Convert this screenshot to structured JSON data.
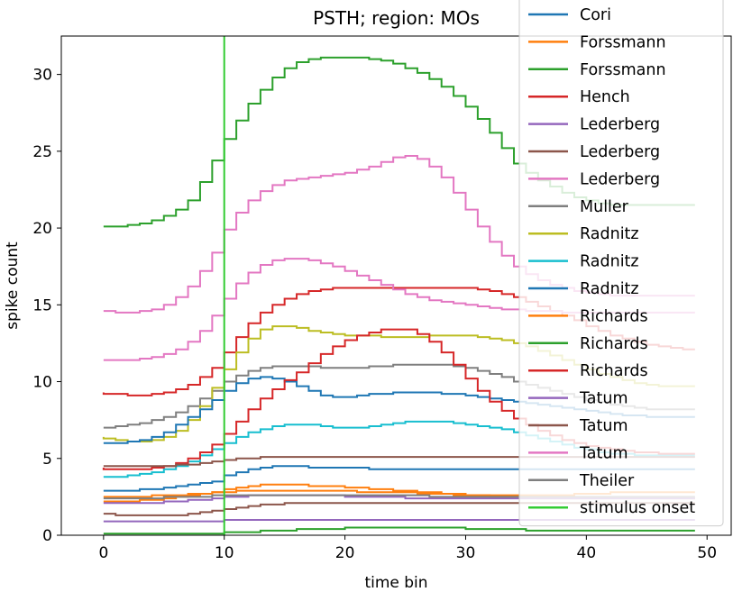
{
  "chart_data": {
    "type": "line",
    "drawstyle": "steps",
    "title": "PSTH; region: MOs",
    "xlabel": "time bin",
    "ylabel": "spike count",
    "xlim": [
      -3.5,
      52
    ],
    "ylim": [
      0,
      32.5
    ],
    "xticks": [
      0,
      10,
      20,
      30,
      40,
      50
    ],
    "yticks": [
      0,
      5,
      10,
      15,
      20,
      25,
      30
    ],
    "grid": false,
    "legend_position": "upper-right",
    "x": [
      0,
      1,
      2,
      3,
      4,
      5,
      6,
      7,
      8,
      9,
      10,
      11,
      12,
      13,
      14,
      15,
      16,
      17,
      18,
      19,
      20,
      21,
      22,
      23,
      24,
      25,
      26,
      27,
      28,
      29,
      30,
      31,
      32,
      33,
      34,
      35,
      36,
      37,
      38,
      39,
      40,
      41,
      42,
      43,
      44,
      45,
      46,
      47,
      48,
      49
    ],
    "series": [
      {
        "name": "Cori",
        "color": "#1f77b4",
        "values": [
          2.9,
          2.9,
          2.9,
          2.9,
          3.0,
          3.0,
          3.1,
          3.2,
          3.3,
          3.4,
          3.5,
          3.9,
          4.1,
          4.3,
          4.4,
          4.5,
          4.5,
          4.5,
          4.4,
          4.4,
          4.4,
          4.4,
          4.4,
          4.3,
          4.3,
          4.3,
          4.3,
          4.3,
          4.3,
          4.3,
          4.3,
          4.3,
          4.3,
          4.3,
          4.3,
          4.3,
          4.3,
          4.3,
          4.3,
          4.3,
          4.3,
          4.3,
          4.3,
          4.3,
          4.3,
          4.3,
          4.3,
          4.3,
          4.3,
          4.3
        ]
      },
      {
        "name": "Forssmann",
        "color": "#ff7f0e",
        "values": [
          2.2,
          2.2,
          2.2,
          2.2,
          2.3,
          2.3,
          2.4,
          2.5,
          2.6,
          2.7,
          2.8,
          3.0,
          3.1,
          3.2,
          3.3,
          3.3,
          3.3,
          3.3,
          3.2,
          3.2,
          3.2,
          3.1,
          3.1,
          3.0,
          3.0,
          2.9,
          2.9,
          2.8,
          2.8,
          2.7,
          2.7,
          2.6,
          2.6,
          2.6,
          2.6,
          2.6,
          2.6,
          2.6,
          2.6,
          2.6,
          2.7,
          2.7,
          2.7,
          2.8,
          2.8,
          2.8,
          2.8,
          2.8,
          2.8,
          2.8
        ]
      },
      {
        "name": "Forssmann",
        "color": "#2ca02c",
        "values": [
          20.1,
          20.1,
          20.1,
          20.2,
          20.3,
          20.5,
          20.8,
          21.2,
          21.8,
          23.0,
          24.4,
          25.8,
          27.0,
          28.1,
          29.0,
          29.8,
          30.4,
          30.8,
          31.0,
          31.1,
          31.1,
          31.1,
          31.1,
          31.0,
          30.9,
          30.7,
          30.4,
          30.1,
          29.7,
          29.2,
          28.6,
          27.9,
          27.1,
          26.2,
          25.2,
          24.2,
          23.6,
          23.1,
          22.7,
          22.3,
          22.0,
          21.8,
          21.6,
          21.5,
          21.5,
          21.5,
          21.5,
          21.5,
          21.5,
          21.5
        ]
      },
      {
        "name": "Hench",
        "color": "#d62728",
        "values": [
          9.3,
          9.2,
          9.2,
          9.1,
          9.1,
          9.2,
          9.3,
          9.5,
          9.8,
          10.3,
          10.9,
          11.9,
          12.9,
          13.8,
          14.5,
          15.0,
          15.4,
          15.7,
          15.9,
          16.0,
          16.1,
          16.1,
          16.1,
          16.1,
          16.1,
          16.1,
          16.1,
          16.1,
          16.1,
          16.1,
          16.1,
          16.1,
          16.0,
          15.9,
          15.7,
          15.5,
          15.2,
          14.9,
          14.6,
          14.3,
          14.0,
          13.6,
          13.3,
          13.0,
          12.8,
          12.6,
          12.4,
          12.3,
          12.2,
          12.1
        ]
      },
      {
        "name": "Lederberg",
        "color": "#9467bd",
        "values": [
          0.9,
          0.9,
          0.9,
          0.9,
          0.9,
          0.9,
          0.9,
          0.9,
          0.9,
          0.9,
          0.9,
          1.0,
          1.0,
          1.0,
          1.0,
          1.0,
          1.0,
          1.0,
          1.0,
          1.0,
          1.0,
          1.0,
          1.0,
          1.0,
          1.0,
          1.0,
          1.0,
          1.0,
          1.0,
          1.0,
          1.0,
          1.0,
          1.0,
          1.0,
          1.0,
          1.0,
          1.0,
          1.0,
          1.0,
          1.0,
          1.0,
          1.0,
          1.0,
          1.0,
          1.0,
          1.0,
          1.0,
          1.0,
          1.0,
          1.0
        ]
      },
      {
        "name": "Lederberg",
        "color": "#8c564b",
        "values": [
          1.4,
          1.4,
          1.3,
          1.3,
          1.3,
          1.3,
          1.3,
          1.3,
          1.4,
          1.5,
          1.6,
          1.7,
          1.8,
          1.9,
          2.0,
          2.0,
          2.1,
          2.1,
          2.1,
          2.1,
          2.1,
          2.1,
          2.1,
          2.1,
          2.1,
          2.1,
          2.1,
          2.1,
          2.1,
          2.1,
          2.1,
          2.1,
          2.1,
          2.1,
          2.1,
          2.1,
          2.1,
          2.1,
          2.1,
          2.1,
          2.1,
          2.1,
          2.1,
          2.1,
          2.1,
          2.1,
          2.1,
          2.1,
          2.1,
          2.1
        ]
      },
      {
        "name": "Lederberg",
        "color": "#e377c2",
        "values": [
          14.6,
          14.6,
          14.5,
          14.5,
          14.6,
          14.7,
          15.0,
          15.5,
          16.2,
          17.2,
          18.4,
          19.9,
          21.0,
          21.8,
          22.4,
          22.8,
          23.1,
          23.2,
          23.3,
          23.4,
          23.5,
          23.6,
          23.8,
          24.0,
          24.3,
          24.6,
          24.7,
          24.5,
          24.0,
          23.3,
          22.3,
          21.2,
          20.1,
          19.1,
          18.2,
          17.5,
          17.0,
          16.6,
          16.3,
          16.1,
          15.9,
          15.8,
          15.7,
          15.6,
          15.6,
          15.6,
          15.6,
          15.6,
          15.6,
          15.6
        ]
      },
      {
        "name": "Muller",
        "color": "#7f7f7f",
        "values": [
          7.0,
          7.0,
          7.1,
          7.2,
          7.3,
          7.5,
          7.7,
          8.0,
          8.4,
          8.9,
          9.4,
          10.0,
          10.4,
          10.7,
          10.9,
          11.0,
          11.0,
          11.0,
          11.0,
          10.9,
          10.9,
          10.9,
          10.9,
          11.0,
          11.0,
          11.1,
          11.1,
          11.1,
          11.1,
          11.1,
          11.0,
          10.9,
          10.7,
          10.5,
          10.3,
          10.0,
          9.8,
          9.6,
          9.4,
          9.2,
          9.0,
          8.8,
          8.7,
          8.5,
          8.4,
          8.3,
          8.2,
          8.2,
          8.2,
          8.2
        ]
      },
      {
        "name": "Radnitz",
        "color": "#bcbd22",
        "values": [
          6.4,
          6.3,
          6.2,
          6.1,
          6.1,
          6.2,
          6.4,
          6.8,
          7.5,
          8.4,
          9.6,
          10.8,
          11.9,
          12.8,
          13.4,
          13.6,
          13.6,
          13.5,
          13.3,
          13.2,
          13.1,
          13.0,
          13.0,
          13.0,
          12.9,
          12.9,
          12.9,
          12.9,
          13.0,
          13.0,
          13.0,
          13.0,
          12.9,
          12.8,
          12.7,
          12.5,
          12.3,
          12.0,
          11.7,
          11.4,
          11.1,
          10.8,
          10.5,
          10.3,
          10.1,
          9.9,
          9.8,
          9.7,
          9.7,
          9.7
        ]
      },
      {
        "name": "Radnitz",
        "color": "#17becf",
        "values": [
          3.8,
          3.8,
          3.8,
          3.9,
          4.0,
          4.1,
          4.3,
          4.5,
          4.8,
          5.2,
          5.6,
          6.0,
          6.4,
          6.7,
          6.9,
          7.1,
          7.2,
          7.2,
          7.2,
          7.1,
          7.0,
          7.0,
          7.0,
          7.1,
          7.2,
          7.3,
          7.4,
          7.4,
          7.4,
          7.4,
          7.3,
          7.2,
          7.1,
          7.0,
          6.9,
          6.7,
          6.5,
          6.3,
          6.1,
          5.9,
          5.7,
          5.6,
          5.4,
          5.3,
          5.3,
          5.2,
          5.2,
          5.2,
          5.2,
          5.2
        ]
      },
      {
        "name": "Radnitz",
        "color": "#1f77b4",
        "values": [
          6.0,
          6.0,
          6.0,
          6.1,
          6.2,
          6.4,
          6.7,
          7.2,
          7.7,
          8.2,
          8.8,
          9.4,
          9.9,
          10.2,
          10.3,
          10.2,
          10.0,
          9.7,
          9.4,
          9.1,
          9.0,
          9.0,
          9.1,
          9.2,
          9.2,
          9.3,
          9.3,
          9.3,
          9.3,
          9.2,
          9.2,
          9.1,
          9.0,
          8.9,
          8.8,
          8.7,
          8.6,
          8.5,
          8.4,
          8.3,
          8.2,
          8.1,
          8.0,
          7.9,
          7.8,
          7.8,
          7.7,
          7.7,
          7.7,
          7.7
        ]
      },
      {
        "name": "Richards",
        "color": "#ff7f0e",
        "values": [
          2.5,
          2.5,
          2.5,
          2.5,
          2.5,
          2.6,
          2.6,
          2.6,
          2.7,
          2.7,
          2.8,
          2.8,
          2.9,
          2.9,
          2.9,
          2.9,
          2.9,
          2.9,
          2.9,
          2.9,
          2.9,
          2.9,
          2.8,
          2.8,
          2.8,
          2.8,
          2.8,
          2.7,
          2.7,
          2.7,
          2.6,
          2.6,
          2.6,
          2.5,
          2.5,
          2.5,
          2.5,
          2.4,
          2.4,
          2.4,
          2.4,
          2.4,
          2.4,
          2.4,
          2.4,
          2.4,
          2.4,
          2.4,
          2.4,
          2.4
        ]
      },
      {
        "name": "Richards",
        "color": "#2ca02c",
        "values": [
          0.1,
          0.1,
          0.1,
          0.1,
          0.1,
          0.1,
          0.1,
          0.1,
          0.1,
          0.1,
          0.1,
          0.2,
          0.2,
          0.2,
          0.3,
          0.3,
          0.3,
          0.4,
          0.4,
          0.4,
          0.4,
          0.5,
          0.5,
          0.5,
          0.5,
          0.5,
          0.5,
          0.5,
          0.5,
          0.5,
          0.5,
          0.4,
          0.4,
          0.4,
          0.4,
          0.4,
          0.3,
          0.3,
          0.3,
          0.3,
          0.3,
          0.3,
          0.3,
          0.3,
          0.3,
          0.3,
          0.3,
          0.3,
          0.3,
          0.3
        ]
      },
      {
        "name": "Richards",
        "color": "#d62728",
        "values": [
          4.4,
          4.3,
          4.3,
          4.3,
          4.3,
          4.4,
          4.5,
          4.7,
          5.0,
          5.4,
          5.9,
          6.6,
          7.4,
          8.2,
          8.9,
          9.5,
          10.1,
          10.6,
          11.2,
          11.8,
          12.3,
          12.7,
          13.0,
          13.2,
          13.4,
          13.4,
          13.4,
          13.1,
          12.6,
          11.9,
          11.1,
          10.2,
          9.4,
          8.7,
          8.1,
          7.6,
          7.2,
          6.8,
          6.5,
          6.2,
          6.0,
          5.8,
          5.7,
          5.6,
          5.5,
          5.4,
          5.4,
          5.3,
          5.3,
          5.3
        ]
      },
      {
        "name": "Tatum",
        "color": "#9467bd",
        "values": [
          2.1,
          2.1,
          2.1,
          2.1,
          2.1,
          2.1,
          2.2,
          2.2,
          2.3,
          2.3,
          2.4,
          2.5,
          2.5,
          2.6,
          2.6,
          2.6,
          2.6,
          2.6,
          2.6,
          2.6,
          2.6,
          2.5,
          2.5,
          2.5,
          2.5,
          2.5,
          2.4,
          2.4,
          2.4,
          2.4,
          2.4,
          2.4,
          2.4,
          2.4,
          2.4,
          2.4,
          2.4,
          2.4,
          2.4,
          2.4,
          2.4,
          2.4,
          2.4,
          2.4,
          2.4,
          2.4,
          2.4,
          2.4,
          2.4,
          2.4
        ]
      },
      {
        "name": "Tatum",
        "color": "#8c564b",
        "values": [
          4.5,
          4.5,
          4.5,
          4.5,
          4.5,
          4.5,
          4.5,
          4.6,
          4.6,
          4.7,
          4.8,
          4.9,
          5.0,
          5.0,
          5.1,
          5.1,
          5.1,
          5.1,
          5.1,
          5.1,
          5.1,
          5.1,
          5.1,
          5.1,
          5.1,
          5.1,
          5.1,
          5.1,
          5.1,
          5.1,
          5.1,
          5.1,
          5.1,
          5.1,
          5.1,
          5.1,
          5.1,
          5.1,
          5.1,
          5.1,
          5.1,
          5.1,
          5.1,
          5.1,
          5.1,
          5.1,
          5.1,
          5.1,
          5.1,
          5.1
        ]
      },
      {
        "name": "Tatum",
        "color": "#e377c2",
        "values": [
          11.4,
          11.4,
          11.4,
          11.4,
          11.5,
          11.6,
          11.8,
          12.1,
          12.6,
          13.3,
          14.3,
          15.4,
          16.4,
          17.1,
          17.6,
          17.9,
          18.0,
          18.0,
          17.9,
          17.7,
          17.5,
          17.2,
          16.9,
          16.6,
          16.3,
          16.0,
          15.7,
          15.5,
          15.3,
          15.2,
          15.1,
          15.0,
          14.9,
          14.8,
          14.7,
          14.7,
          14.6,
          14.6,
          14.6,
          14.5,
          14.5,
          14.5,
          14.5,
          14.5,
          14.5,
          14.5,
          14.5,
          14.5,
          14.5,
          14.5
        ]
      },
      {
        "name": "Theiler",
        "color": "#7f7f7f",
        "values": [
          2.4,
          2.4,
          2.4,
          2.4,
          2.4,
          2.4,
          2.5,
          2.5,
          2.5,
          2.5,
          2.6,
          2.6,
          2.6,
          2.6,
          2.6,
          2.6,
          2.6,
          2.6,
          2.6,
          2.6,
          2.6,
          2.6,
          2.6,
          2.6,
          2.6,
          2.6,
          2.6,
          2.6,
          2.5,
          2.5,
          2.5,
          2.5,
          2.5,
          2.5,
          2.5,
          2.5,
          2.5,
          2.5,
          2.5,
          2.5,
          2.5,
          2.5,
          2.5,
          2.5,
          2.5,
          2.5,
          2.5,
          2.5,
          2.5,
          2.5
        ]
      }
    ],
    "vline": {
      "name": "stimulus onset",
      "x": 10,
      "color": "#33cc33"
    }
  }
}
